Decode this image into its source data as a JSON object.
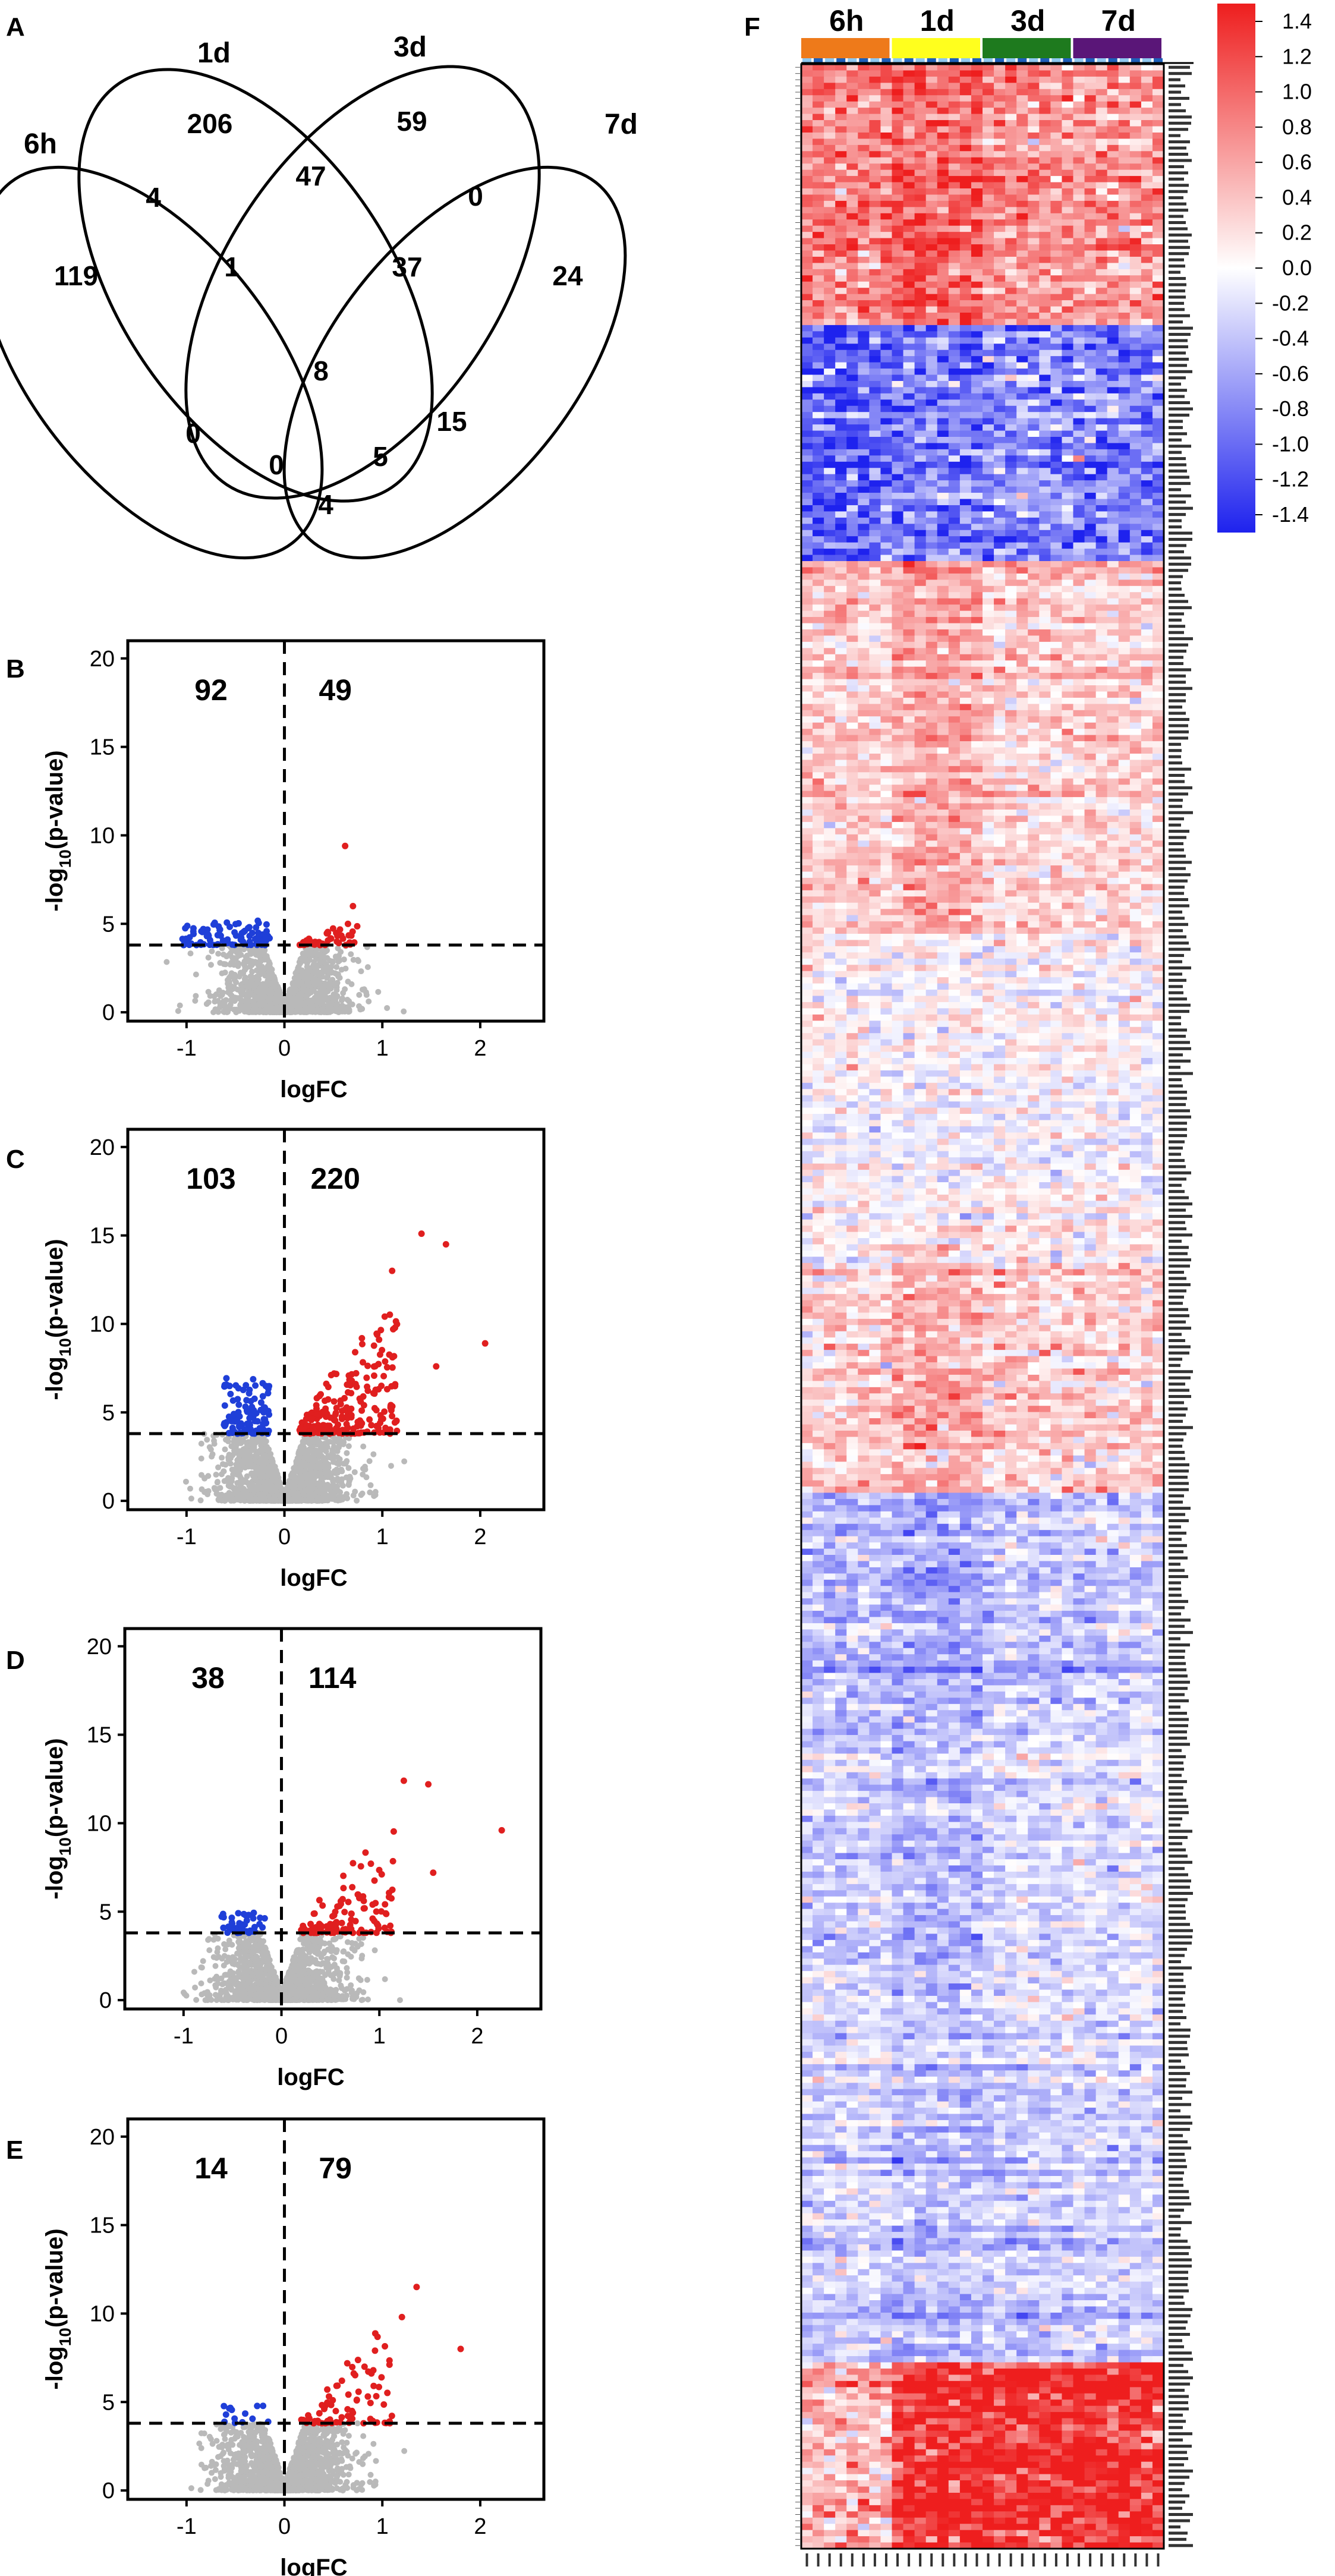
{
  "panel_labels": {
    "A": "A",
    "B": "B",
    "C": "C",
    "D": "D",
    "E": "E",
    "F": "F"
  },
  "chart_data": [
    {
      "panel": "A",
      "type": "venn",
      "sets": [
        "6h",
        "1d",
        "3d",
        "7d"
      ],
      "region_counts": {
        "6h_only": 119,
        "1d_only": 206,
        "3d_only": 59,
        "7d_only": 24,
        "6h_1d": 4,
        "1d_3d": 47,
        "3d_7d": 0,
        "6h_7d": 4,
        "6h_1d_3d": 1,
        "1d_3d_7d": 37,
        "6h_1d_7d": 0,
        "6h_3d_7d": 0,
        "all_four": 8,
        "3d_7d_inner": 15,
        "6h_3d": 5
      }
    },
    {
      "panel": "B",
      "type": "scatter",
      "subtype": "volcano",
      "xlabel": "logFC",
      "ylabel_main": "-log",
      "ylabel_sub": "10",
      "ylabel_tail": "(p-value)",
      "xticks": [
        "-1",
        "0",
        "1",
        "2"
      ],
      "yticks": [
        "0",
        "5",
        "10",
        "15",
        "20"
      ],
      "xlim": [
        -1.6,
        2.65
      ],
      "ylim": [
        -0.5,
        21
      ],
      "threshold_y": 3.8,
      "xline": 0,
      "down_count": "92",
      "up_count": "49",
      "n_down": 92,
      "n_up": 49,
      "up_max_x": 0.75,
      "up_max_y": 5.2,
      "down_min_x": -1.05,
      "down_max_y": 5.2,
      "outliers": [
        [
          0.62,
          9.4
        ],
        [
          0.7,
          6.0
        ]
      ]
    },
    {
      "panel": "C",
      "type": "scatter",
      "subtype": "volcano",
      "xlabel": "logFC",
      "ylabel_main": "-log",
      "ylabel_sub": "10",
      "ylabel_tail": "(p-value)",
      "xticks": [
        "-1",
        "0",
        "1",
        "2"
      ],
      "yticks": [
        "0",
        "5",
        "10",
        "15",
        "20"
      ],
      "xlim": [
        -1.6,
        2.65
      ],
      "ylim": [
        -0.5,
        21
      ],
      "threshold_y": 3.8,
      "xline": 0,
      "down_count": "103",
      "up_count": "220",
      "n_down": 103,
      "n_up": 220,
      "up_max_x": 1.15,
      "up_max_y": 12.5,
      "down_min_x": -0.62,
      "down_max_y": 7.0,
      "outliers": [
        [
          1.4,
          15.1
        ],
        [
          1.65,
          14.5
        ],
        [
          1.1,
          13.0
        ],
        [
          1.55,
          7.6
        ],
        [
          2.05,
          8.9
        ]
      ]
    },
    {
      "panel": "D",
      "type": "scatter",
      "subtype": "volcano",
      "xlabel": "logFC",
      "ylabel_main": "-log",
      "ylabel_sub": "10",
      "ylabel_tail": "(p-value)",
      "xticks": [
        "-1",
        "0",
        "1",
        "2"
      ],
      "yticks": [
        "0",
        "5",
        "10",
        "15",
        "20"
      ],
      "xlim": [
        -1.6,
        2.65
      ],
      "ylim": [
        -0.5,
        21
      ],
      "threshold_y": 3.8,
      "xline": 0,
      "down_count": "38",
      "up_count": "114",
      "n_down": 38,
      "n_up": 114,
      "up_max_x": 1.15,
      "up_max_y": 10.5,
      "down_min_x": -0.65,
      "down_max_y": 5.0,
      "outliers": [
        [
          1.25,
          12.4
        ],
        [
          1.5,
          12.2
        ],
        [
          2.25,
          9.6
        ],
        [
          1.55,
          7.2
        ]
      ]
    },
    {
      "panel": "E",
      "type": "scatter",
      "subtype": "volcano",
      "xlabel": "logFC",
      "ylabel_main": "-log",
      "ylabel_sub": "10",
      "ylabel_tail": "(p-value)",
      "xticks": [
        "-1",
        "0",
        "1",
        "2"
      ],
      "yticks": [
        "0",
        "5",
        "10",
        "15",
        "20"
      ],
      "xlim": [
        -1.6,
        2.65
      ],
      "ylim": [
        -0.5,
        21
      ],
      "threshold_y": 3.8,
      "xline": 0,
      "down_count": "14",
      "up_count": "79",
      "n_down": 14,
      "n_up": 79,
      "up_max_x": 1.1,
      "up_max_y": 9.5,
      "down_min_x": -0.62,
      "down_max_y": 4.8,
      "outliers": [
        [
          1.35,
          11.5
        ],
        [
          1.8,
          8.0
        ],
        [
          1.2,
          9.8
        ]
      ]
    },
    {
      "panel": "F",
      "type": "heatmap",
      "groups": [
        "6h",
        "1d",
        "3d",
        "7d"
      ],
      "group_colors": [
        "#ee7a1a",
        "#ffff1e",
        "#1e7a1e",
        "#5a1678"
      ],
      "columns_per_group": 8,
      "row_count": 400,
      "color_scale": {
        "ticks": [
          "1.4",
          "1.2",
          "1.0",
          "0.8",
          "0.6",
          "0.4",
          "0.2",
          "0.0",
          "-0.2",
          "-0.4",
          "-0.6",
          "-0.8",
          "-1.0",
          "-1.2",
          "-1.4"
        ],
        "min": -1.4,
        "max": 1.4,
        "colors": {
          "low": "#1e22ee",
          "mid": "#ffffff",
          "high": "#ee1e1e"
        }
      },
      "row_blocks": [
        {
          "rows": 42,
          "mean": 0.7,
          "sd": 0.3
        },
        {
          "rows": 38,
          "mean": -0.9,
          "sd": 0.35
        },
        {
          "rows": 60,
          "mean": 0.3,
          "sd": 0.22
        },
        {
          "rows": 50,
          "mean": 0.02,
          "sd": 0.2
        },
        {
          "rows": 40,
          "mean": 0.3,
          "sd": 0.25
        },
        {
          "rows": 40,
          "mean": -0.4,
          "sd": 0.22
        },
        {
          "rows": 45,
          "mean": -0.3,
          "sd": 0.2
        },
        {
          "rows": 55,
          "mean": -0.32,
          "sd": 0.2
        },
        {
          "rows": 30,
          "mean": 1.0,
          "sd": 0.35
        }
      ]
    }
  ]
}
